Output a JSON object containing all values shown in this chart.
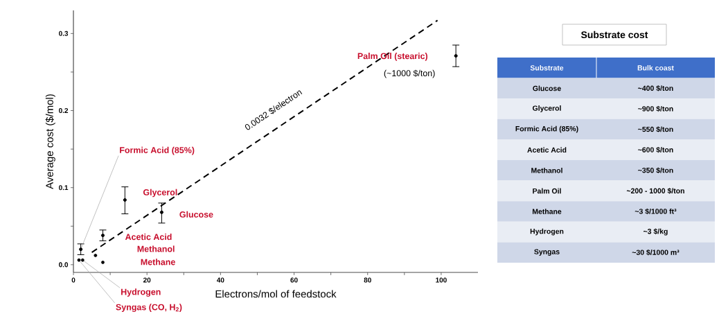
{
  "chart_data": [
    {
      "type": "scatter",
      "xlabel": "Electrons/mol of feedstock",
      "ylabel": "Average cost ($/mol)",
      "marker": "circle",
      "xlim": [
        0,
        110
      ],
      "ylim": [
        -0.01,
        0.33
      ],
      "xticks": [
        0,
        {
          "value": 10,
          "label": null
        },
        20,
        {
          "value": 30,
          "label": null
        },
        40,
        {
          "value": 50,
          "label": null
        },
        60,
        {
          "value": 70,
          "label": null
        },
        80,
        {
          "value": 90,
          "label": null
        },
        100
      ],
      "yticks": [
        {
          "value": 0,
          "label": "0.0"
        },
        {
          "value": 0.05,
          "label": null
        },
        {
          "value": 0.1,
          "label": "0.1"
        },
        {
          "value": 0.15,
          "label": null
        },
        {
          "value": 0.2,
          "label": "0.2"
        },
        {
          "value": 0.25,
          "label": null
        },
        {
          "value": 0.3,
          "label": "0.3"
        }
      ],
      "series": [
        {
          "type": "scatter",
          "color": "#000000",
          "x": [
            2,
            1.5,
            2.5,
            6,
            8,
            8,
            14,
            24,
            104
          ],
          "values": [
            0.02,
            0.006,
            0.006,
            0.012,
            0.003,
            0.038,
            0.084,
            0.068,
            0.271
          ],
          "errors": [
            0.007,
            null,
            null,
            null,
            null,
            0.007,
            [
              0.066,
              0.101
            ],
            [
              0.054,
              0.08
            ],
            [
              0.257,
              0.285
            ]
          ]
        },
        {
          "type": "line",
          "color": "#000000",
          "line_style": "dashed",
          "marker": "none",
          "x": [
            5,
            99
          ],
          "values": [
            0.016,
            0.317
          ]
        }
      ],
      "annotations": [
        {
          "text": "Formic Acid (85%)",
          "x": 2,
          "y": 0.02
        },
        {
          "text": "Glycerol",
          "x": 14,
          "y": 0.084
        },
        {
          "text": "Glucose",
          "x": 24,
          "y": 0.068
        },
        {
          "text": "Acetic Acid",
          "x": 8,
          "y": 0.038
        },
        "Methanol",
        "Methane",
        {
          "text": "Hydrogen",
          "x": 2.5,
          "y": 0.006
        },
        {
          "text": "Syngas (CO, H$_{2}$)",
          "x": 1.5,
          "y": 0.006
        },
        "Palm Oil (stearic)",
        {
          "text": "(~1000 $/ton)",
          "x": 104,
          "y": 0.271
        },
        {
          "text": "0.0032 $/electron",
          "x": 57,
          "y": 0.1824
        }
      ]
    },
    {
      "type": "other",
      "title": "Substrate cost",
      "annotations": [
        "Substrate",
        "Bulk coast",
        "Glucose",
        "~400 $/ton",
        "Glycerol",
        "~900 $/ton",
        "Formic Acid (85%)",
        "~550 $/ton",
        "Acetic Acid",
        "~600 $/ton",
        "Methanol",
        "~350 $/ton",
        "Palm Oil",
        "~200 - 1000 $/ton",
        "Methane",
        "~3 $/1000 ft³",
        "Hydrogen",
        "~3 $/kg",
        "Syngas",
        "~30 $/1000 m³"
      ]
    }
  ]
}
